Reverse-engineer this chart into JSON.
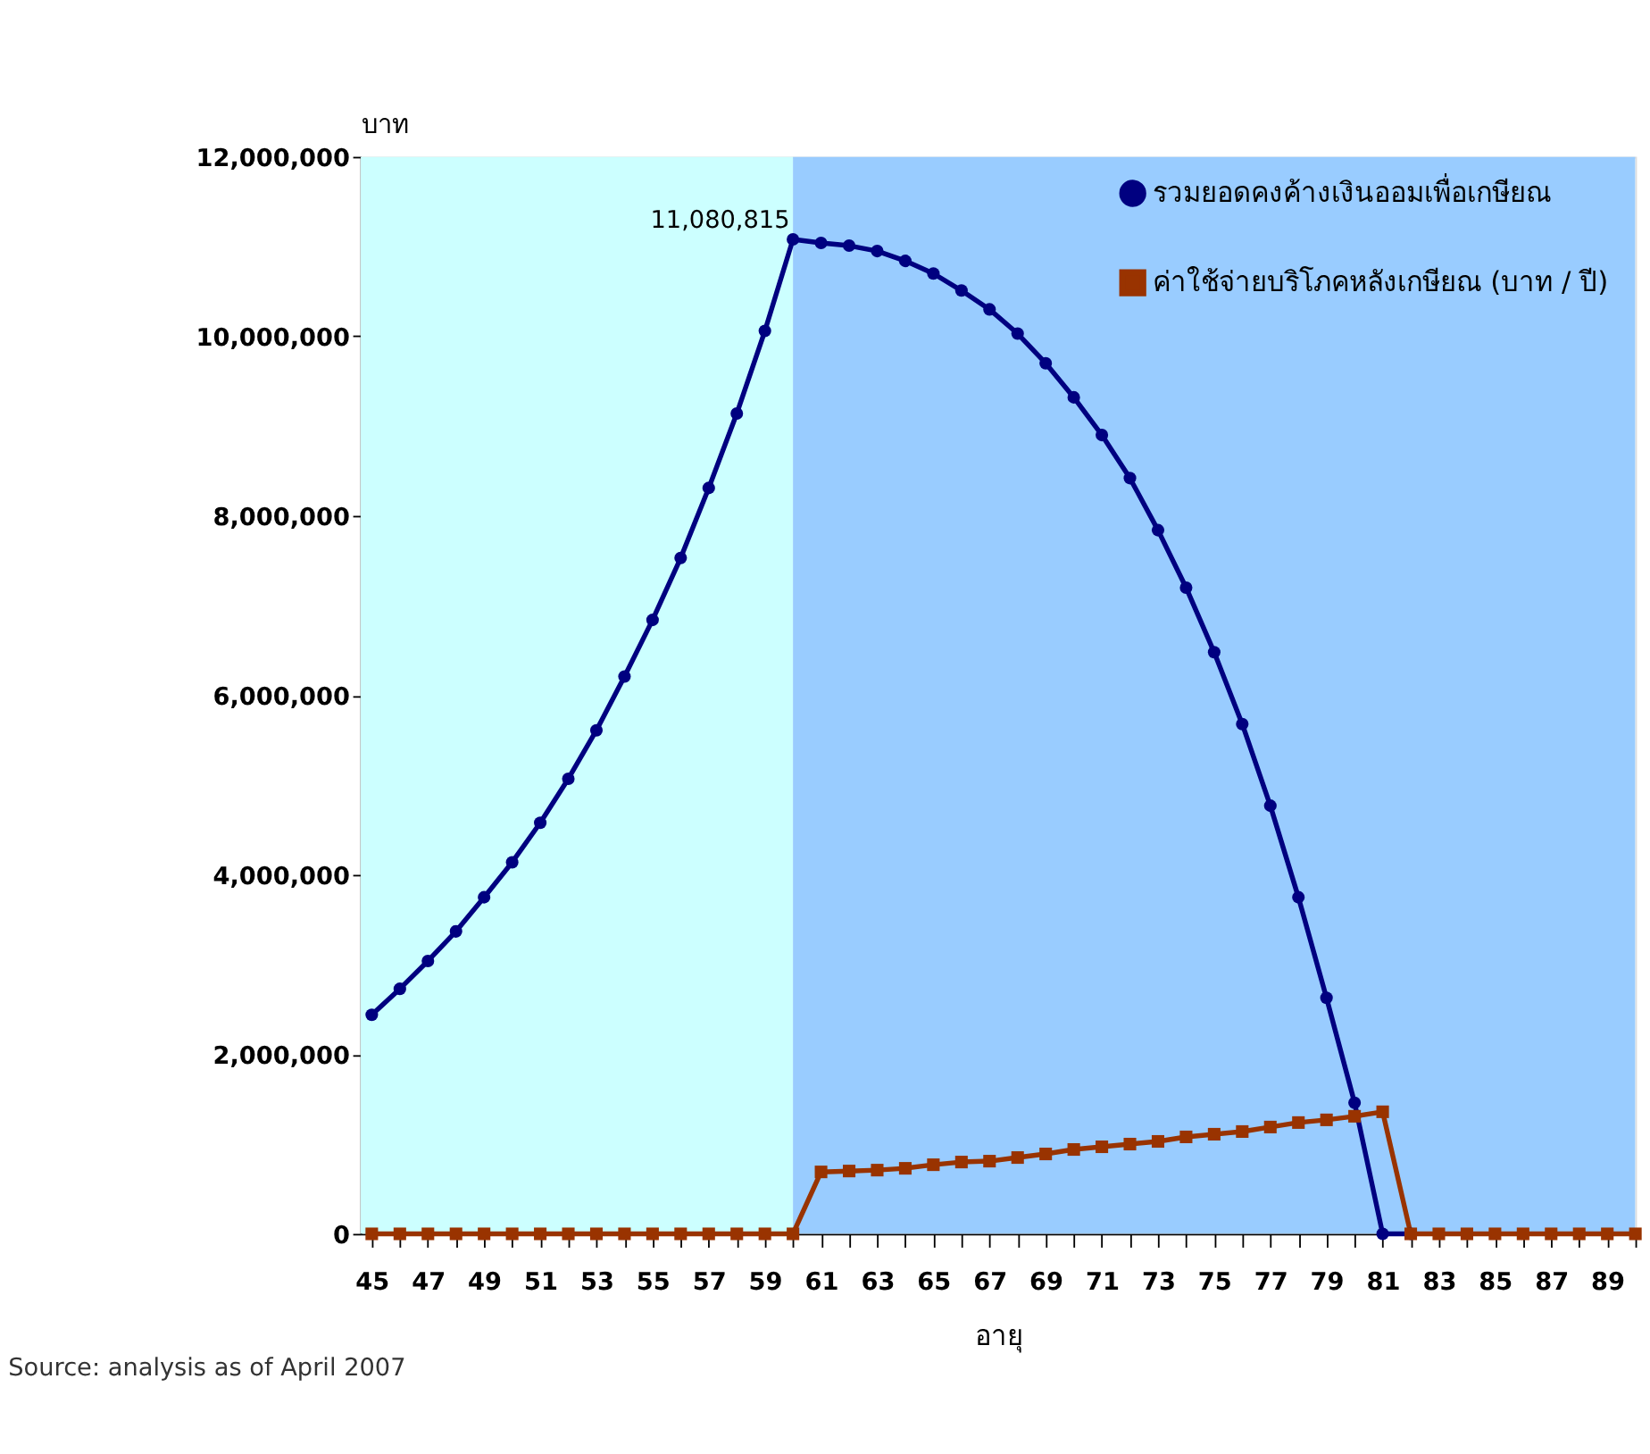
{
  "chart_data": {
    "type": "line",
    "xlabel": "อายุ",
    "ylabel": "บาท",
    "x": [
      45,
      46,
      47,
      48,
      49,
      50,
      51,
      52,
      53,
      54,
      55,
      56,
      57,
      58,
      59,
      60,
      61,
      62,
      63,
      64,
      65,
      66,
      67,
      68,
      69,
      70,
      71,
      72,
      73,
      74,
      75,
      76,
      77,
      78,
      79,
      80,
      81,
      82,
      83,
      84,
      85,
      86,
      87,
      88,
      89,
      90
    ],
    "series": [
      {
        "name": "รวมยอดคงค้างเงินออมเพื่อเกษียณ",
        "color": "#000080",
        "marker": "circle",
        "values": [
          2440000,
          2730000,
          3040000,
          3370000,
          3750000,
          4140000,
          4580000,
          5070000,
          5610000,
          6210000,
          6840000,
          7530000,
          8310000,
          9140000,
          10060000,
          11080815,
          11040000,
          11010000,
          10950000,
          10840000,
          10700000,
          10510000,
          10300000,
          10030000,
          9700000,
          9320000,
          8900000,
          8420000,
          7840000,
          7200000,
          6480000,
          5680000,
          4770000,
          3750000,
          2630000,
          1460000,
          0,
          0,
          null,
          null,
          null,
          null,
          null,
          null,
          null,
          null
        ]
      },
      {
        "name": "ค่าใช้จ่ายบริโภคหลังเกษียณ (บาท / ปี)",
        "color": "#993300",
        "marker": "square",
        "values": [
          0,
          0,
          0,
          0,
          0,
          0,
          0,
          0,
          0,
          0,
          0,
          0,
          0,
          0,
          0,
          0,
          690000,
          700000,
          710000,
          730000,
          770000,
          800000,
          810000,
          850000,
          890000,
          940000,
          970000,
          1000000,
          1030000,
          1080000,
          1110000,
          1140000,
          1190000,
          1240000,
          1270000,
          1310000,
          1360000,
          0,
          0,
          0,
          0,
          0,
          0,
          0,
          0,
          0
        ]
      }
    ],
    "xlim": [
      44.6,
      90
    ],
    "xticks": [
      45,
      {
        "value": 46,
        "label": null
      },
      47,
      {
        "value": 48,
        "label": null
      },
      49,
      {
        "value": 50,
        "label": null
      },
      51,
      {
        "value": 52,
        "label": null
      },
      53,
      {
        "value": 54,
        "label": null
      },
      55,
      {
        "value": 56,
        "label": null
      },
      57,
      {
        "value": 58,
        "label": null
      },
      59,
      {
        "value": 60,
        "label": null
      },
      61,
      {
        "value": 62,
        "label": null
      },
      63,
      {
        "value": 64,
        "label": null
      },
      65,
      {
        "value": 66,
        "label": null
      },
      67,
      {
        "value": 68,
        "label": null
      },
      69,
      {
        "value": 70,
        "label": null
      },
      71,
      {
        "value": 72,
        "label": null
      },
      73,
      {
        "value": 74,
        "label": null
      },
      75,
      {
        "value": 76,
        "label": null
      },
      77,
      {
        "value": 78,
        "label": null
      },
      79,
      {
        "value": 80,
        "label": null
      },
      81,
      {
        "value": 82,
        "label": null
      },
      83,
      {
        "value": 84,
        "label": null
      },
      85,
      {
        "value": 86,
        "label": null
      },
      87,
      {
        "value": 88,
        "label": null
      },
      89,
      {
        "value": 90,
        "label": null
      }
    ],
    "ylim": [
      0,
      12000000
    ],
    "yticks": [
      0,
      {
        "value": 2000000,
        "label": "2,000,000"
      },
      {
        "value": 4000000,
        "label": "4,000,000"
      },
      {
        "value": 6000000,
        "label": "6,000,000"
      },
      {
        "value": 8000000,
        "label": "8,000,000"
      },
      {
        "value": 10000000,
        "label": "10,000,000"
      },
      {
        "value": 12000000,
        "label": "12,000,000"
      }
    ],
    "bands": [
      {
        "axis": "x",
        "from": 44.6,
        "to": 60,
        "label": null,
        "color": "#ccffff"
      },
      {
        "axis": "x",
        "from": 60,
        "to": 90,
        "label": null,
        "color": "#99ccff"
      }
    ],
    "annotations": [
      {
        "text": "11,080,815",
        "x": 60,
        "y": 11080815
      },
      "Source: analysis as of April 2007"
    ],
    "grid": false,
    "legend": "top right",
    "line_style": "solid"
  }
}
